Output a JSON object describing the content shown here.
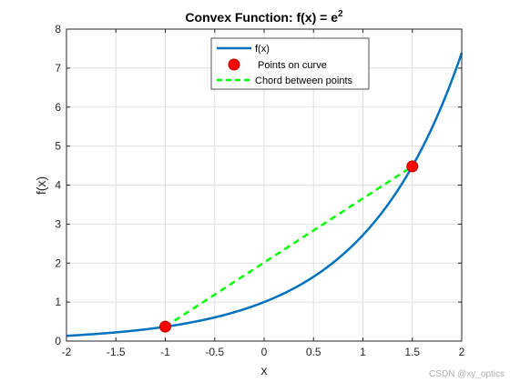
{
  "chart_data": {
    "type": "line",
    "title": "Convex Function: f(x) = e",
    "title_superscript": "2",
    "xlabel": "x",
    "ylabel": "f(x)",
    "xlim": [
      -2,
      2
    ],
    "ylim": [
      0,
      8
    ],
    "xticks": [
      -2,
      -1.5,
      -1,
      -0.5,
      0,
      0.5,
      1,
      1.5,
      2
    ],
    "xtick_labels": [
      "-2",
      "-1.5",
      "-1",
      "-0.5",
      "0",
      "0.5",
      "1",
      "1.5",
      "2"
    ],
    "yticks": [
      0,
      1,
      2,
      3,
      4,
      5,
      6,
      7,
      8
    ],
    "ytick_labels": [
      "0",
      "1",
      "2",
      "3",
      "4",
      "5",
      "6",
      "7",
      "8"
    ],
    "grid": true,
    "legend_position": "top-center",
    "series": [
      {
        "name": "f(x)",
        "kind": "curve",
        "function": "exp",
        "x_range": [
          -2,
          2
        ],
        "color": "#0072BD"
      },
      {
        "name": "Points on curve",
        "kind": "markers",
        "x": [
          -1,
          1.5
        ],
        "y": [
          0.37,
          4.48
        ],
        "color": "#FF0000"
      },
      {
        "name": "Chord between points",
        "kind": "dashed-line",
        "x": [
          -1,
          1.5
        ],
        "y": [
          0.37,
          4.48
        ],
        "color": "#00FF00"
      }
    ]
  },
  "watermark": "CSDN @xy_optics"
}
